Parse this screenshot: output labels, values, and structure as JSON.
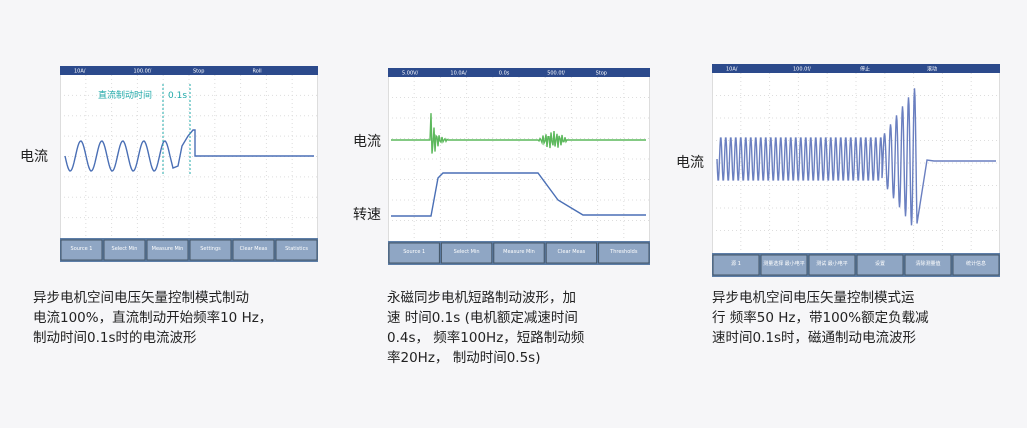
{
  "panels": [
    {
      "signal_labels": [
        "电流"
      ],
      "scope": {
        "status": [
          "10A/",
          "100.0f/",
          "Stop",
          "Roll"
        ],
        "annotation": [
          "直流制动时间",
          "0.1s"
        ],
        "softkeys": [
          "Source 1",
          "Select Min",
          "Measure Min",
          "Settings",
          "Clear Meas",
          "Statistics"
        ]
      },
      "caption": [
        "异步电机空间电压矢量控制模式制动",
        "电流100%，直流制动开始频率10 Hz，",
        "制动时间0.1s时的电流波形"
      ]
    },
    {
      "signal_labels": [
        "电流",
        "转速"
      ],
      "scope": {
        "status": [
          "5.00V/",
          "10.0A/",
          "0.0s",
          "500.0f/",
          "Stop"
        ],
        "annotation": [],
        "softkeys": [
          "Source 1",
          "Select Min",
          "Measure Min",
          "Clear Meas",
          "Thresholds"
        ]
      },
      "caption": [
        "永磁同步电机短路制动波形，加",
        "速 时间0.1s (电机额定减速时间",
        "0.4s， 频率100Hz，短路制动频",
        "率20Hz， 制动时间0.5s)"
      ]
    },
    {
      "signal_labels": [
        "电流"
      ],
      "scope": {
        "status": [
          "10A/",
          "100.0f/",
          "停止",
          "滚动"
        ],
        "annotation": [],
        "softkeys": [
          "源 1",
          "测量选择 最小电平",
          "测试 最小电平",
          "设置",
          "清除测量值",
          "统计信息"
        ]
      },
      "caption": [
        "异步电机空间电压矢量控制模式运",
        "行 频率50 Hz，带100%额定负载减",
        "速时间0.1s时，磁通制动电流波形"
      ]
    }
  ]
}
